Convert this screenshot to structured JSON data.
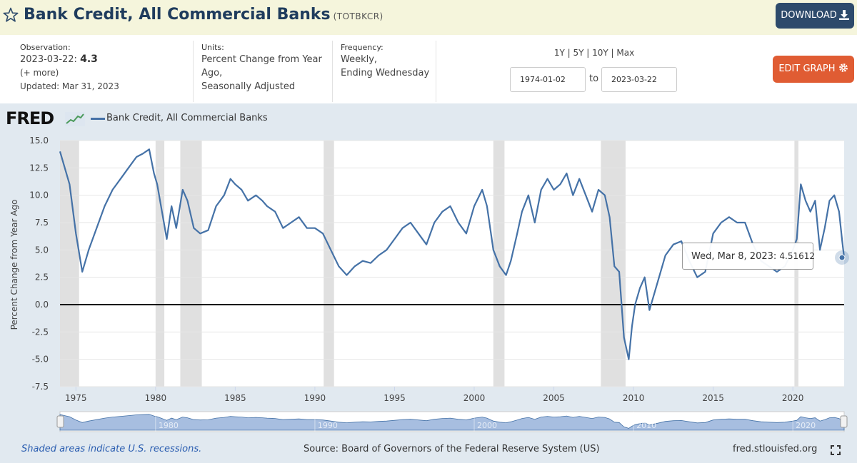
{
  "header": {
    "title": "Bank Credit, All Commercial Banks",
    "series_id": "(TOTBKCR)",
    "download_label": "DOWNLOAD"
  },
  "meta": {
    "observation_label": "Observation:",
    "observation_date": "2023-03-22:",
    "observation_value": "4.3",
    "more_label": "(+ more)",
    "updated": "Updated: Mar 31, 2023",
    "units_label": "Units:",
    "units_line1": "Percent Change from Year",
    "units_line2": "Ago,",
    "units_line3": "Seasonally Adjusted",
    "frequency_label": "Frequency:",
    "frequency_line1": "Weekly,",
    "frequency_line2": "Ending Wednesday",
    "range_links": "1Y | 5Y | 10Y | Max",
    "start_date": "1974-01-02",
    "to_label": "to",
    "end_date": "2023-03-22",
    "edit_label": "EDIT GRAPH"
  },
  "colors": {
    "line": "#4572a7",
    "recession": "#e0e0e0",
    "header_bg": "#f5f5dc",
    "download_bg": "#2d4a6b",
    "edit_bg": "#e05c33"
  },
  "legend": {
    "logo": "FRED",
    "series_name": "Bank Credit, All Commercial Banks"
  },
  "tooltip": {
    "date": "Wed, Mar 8, 2023:",
    "value": "4.51612"
  },
  "footer": {
    "recession_note": "Shaded areas indicate U.S. recessions.",
    "source": "Source: Board of Governors of the Federal Reserve System (US)",
    "site": "fred.stlouisfed.org"
  },
  "chart_data": {
    "type": "line",
    "ylabel": "Percent Change from Year Ago",
    "ylim": [
      -7.5,
      15.0
    ],
    "xlim": [
      1974.0,
      2023.22
    ],
    "y_ticks": [
      "15.0",
      "12.5",
      "10.0",
      "7.5",
      "5.0",
      "2.5",
      "0.0",
      "-2.5",
      "-5.0",
      "-7.5"
    ],
    "x_ticks": [
      "1975",
      "1980",
      "1985",
      "1990",
      "1995",
      "2000",
      "2005",
      "2010",
      "2015",
      "2020"
    ],
    "navigator_ticks": [
      "1980",
      "1990",
      "2000",
      "2010",
      "2020"
    ],
    "zero_line": true,
    "recessions": [
      [
        1974.0,
        1975.2
      ],
      [
        1980.0,
        1980.55
      ],
      [
        1981.55,
        1982.9
      ],
      [
        1990.55,
        1991.2
      ],
      [
        2001.2,
        2001.9
      ],
      [
        2007.95,
        2009.5
      ],
      [
        2020.1,
        2020.35
      ]
    ],
    "series": [
      {
        "name": "Bank Credit, All Commercial Banks",
        "x": [
          1974.0,
          1974.3,
          1974.6,
          1975.0,
          1975.4,
          1975.8,
          1976.3,
          1976.8,
          1977.3,
          1977.8,
          1978.3,
          1978.8,
          1979.2,
          1979.6,
          1979.9,
          1980.1,
          1980.4,
          1980.7,
          1981.0,
          1981.3,
          1981.7,
          1982.0,
          1982.4,
          1982.8,
          1983.3,
          1983.8,
          1984.3,
          1984.7,
          1985.0,
          1985.4,
          1985.8,
          1986.3,
          1986.7,
          1987.0,
          1987.5,
          1988.0,
          1988.5,
          1989.0,
          1989.5,
          1990.0,
          1990.5,
          1991.0,
          1991.5,
          1992.0,
          1992.5,
          1993.0,
          1993.5,
          1994.0,
          1994.5,
          1995.0,
          1995.5,
          1996.0,
          1996.5,
          1997.0,
          1997.5,
          1998.0,
          1998.5,
          1999.0,
          1999.5,
          2000.0,
          2000.5,
          2000.8,
          2001.2,
          2001.6,
          2002.0,
          2002.3,
          2002.7,
          2003.0,
          2003.4,
          2003.8,
          2004.2,
          2004.6,
          2005.0,
          2005.4,
          2005.8,
          2006.2,
          2006.6,
          2007.0,
          2007.4,
          2007.8,
          2008.2,
          2008.5,
          2008.8,
          2009.1,
          2009.4,
          2009.7,
          2009.9,
          2010.1,
          2010.4,
          2010.7,
          2011.0,
          2011.3,
          2011.6,
          2012.0,
          2012.5,
          2013.0,
          2013.5,
          2014.0,
          2014.5,
          2015.0,
          2015.5,
          2016.0,
          2016.5,
          2017.0,
          2017.5,
          2018.0,
          2018.5,
          2019.0,
          2019.5,
          2020.0,
          2020.25,
          2020.5,
          2020.8,
          2021.1,
          2021.4,
          2021.7,
          2022.0,
          2022.3,
          2022.6,
          2022.9,
          2023.1,
          2023.22
        ],
        "values": [
          14.0,
          12.5,
          11.0,
          6.5,
          3.0,
          5.0,
          7.0,
          9.0,
          10.5,
          11.5,
          12.5,
          13.5,
          13.8,
          14.2,
          12.0,
          11.0,
          8.5,
          6.0,
          9.0,
          7.0,
          10.5,
          9.5,
          7.0,
          6.5,
          6.8,
          9.0,
          10.0,
          11.5,
          11.0,
          10.5,
          9.5,
          10.0,
          9.5,
          9.0,
          8.5,
          7.0,
          7.5,
          8.0,
          7.0,
          7.0,
          6.5,
          5.0,
          3.5,
          2.7,
          3.5,
          4.0,
          3.8,
          4.5,
          5.0,
          6.0,
          7.0,
          7.5,
          6.5,
          5.5,
          7.5,
          8.5,
          9.0,
          7.5,
          6.5,
          9.0,
          10.5,
          9.0,
          5.0,
          3.5,
          2.7,
          4.0,
          6.5,
          8.5,
          10.0,
          7.5,
          10.5,
          11.5,
          10.5,
          11.0,
          12.0,
          10.0,
          11.5,
          10.0,
          8.5,
          10.5,
          10.0,
          8.0,
          3.5,
          3.0,
          -3.0,
          -5.0,
          -2.0,
          0.0,
          1.5,
          2.5,
          -0.5,
          1.0,
          2.5,
          4.5,
          5.5,
          5.8,
          4.0,
          2.5,
          3.0,
          6.5,
          7.5,
          8.0,
          7.5,
          7.5,
          5.5,
          4.0,
          3.5,
          3.0,
          3.5,
          5.0,
          6.0,
          11.0,
          9.5,
          8.5,
          9.5,
          5.0,
          7.0,
          9.5,
          10.0,
          8.5,
          5.8,
          4.3
        ]
      }
    ]
  }
}
